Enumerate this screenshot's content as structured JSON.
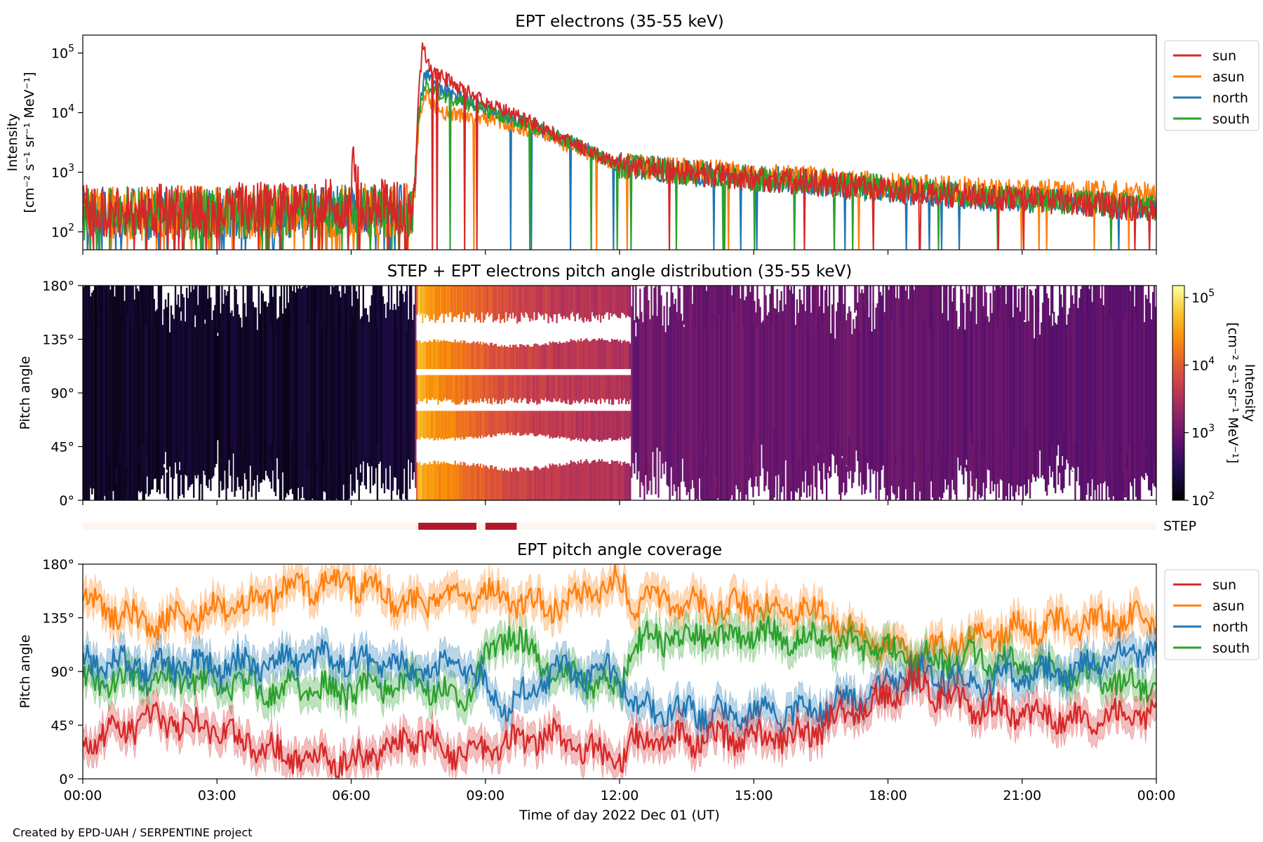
{
  "figure": {
    "credit": "Created by EPD-UAH / SERPENTINE project",
    "xlabel": "Time of day 2022 Dec 01 (UT)",
    "x_ticks": [
      "00:00",
      "03:00",
      "06:00",
      "09:00",
      "12:00",
      "15:00",
      "18:00",
      "21:00",
      "00:00"
    ],
    "x_range_hours": [
      0,
      24
    ]
  },
  "colors": {
    "sun": "#d62728",
    "asun": "#ff7f0e",
    "north": "#1f77b4",
    "south": "#2ca02c",
    "step_bar": "#b2182b",
    "step_track": "#fff5f0"
  },
  "chart_data": [
    {
      "type": "line",
      "title": "EPT electrons (35-55 keV)",
      "ylabel_line1": "Intensity",
      "ylabel_line2": "[cm⁻² s⁻¹ sr⁻¹ MeV⁻¹]",
      "yscale": "log",
      "ylim": [
        50,
        200000
      ],
      "y_ticks": [
        {
          "value": 100,
          "base": "10",
          "exp": "2"
        },
        {
          "value": 1000,
          "base": "10",
          "exp": "3"
        },
        {
          "value": 10000,
          "base": "10",
          "exp": "4"
        },
        {
          "value": 100000,
          "base": "10",
          "exp": "5"
        }
      ],
      "legend": {
        "position": "outside-right-top",
        "entries": [
          "sun",
          "asun",
          "north",
          "south"
        ]
      },
      "series": [
        {
          "name": "sun",
          "anchors": [
            [
              0,
              220
            ],
            [
              3,
              230
            ],
            [
              5,
              280
            ],
            [
              6.0,
              300
            ],
            [
              6.0,
              1800
            ],
            [
              6.2,
              300
            ],
            [
              7.4,
              260
            ],
            [
              7.5,
              20000
            ],
            [
              7.6,
              130000
            ],
            [
              7.8,
              50000
            ],
            [
              8.5,
              25000
            ],
            [
              9.0,
              15000
            ],
            [
              10,
              7000
            ],
            [
              11,
              3000
            ],
            [
              12,
              1300
            ],
            [
              14,
              900
            ],
            [
              16,
              700
            ],
            [
              18,
              500
            ],
            [
              20,
              400
            ],
            [
              22,
              320
            ],
            [
              24,
              230
            ]
          ]
        },
        {
          "name": "asun",
          "anchors": [
            [
              0,
              200
            ],
            [
              3,
              210
            ],
            [
              6,
              230
            ],
            [
              7.4,
              230
            ],
            [
              7.5,
              5000
            ],
            [
              7.65,
              20000
            ],
            [
              8,
              10000
            ],
            [
              9,
              8000
            ],
            [
              10,
              5000
            ],
            [
              11,
              2500
            ],
            [
              12,
              1300
            ],
            [
              14,
              1000
            ],
            [
              16,
              800
            ],
            [
              18,
              600
            ],
            [
              20,
              500
            ],
            [
              22,
              450
            ],
            [
              24,
              420
            ]
          ]
        },
        {
          "name": "north",
          "anchors": [
            [
              0,
              200
            ],
            [
              3,
              210
            ],
            [
              6,
              230
            ],
            [
              7.4,
              230
            ],
            [
              7.5,
              10000
            ],
            [
              7.65,
              45000
            ],
            [
              8,
              25000
            ],
            [
              9,
              12000
            ],
            [
              10,
              6000
            ],
            [
              11,
              3000
            ],
            [
              12,
              1300
            ],
            [
              14,
              900
            ],
            [
              16,
              700
            ],
            [
              18,
              500
            ],
            [
              20,
              380
            ],
            [
              22,
              320
            ],
            [
              24,
              260
            ]
          ]
        },
        {
          "name": "south",
          "anchors": [
            [
              0,
              200
            ],
            [
              3,
              210
            ],
            [
              6,
              230
            ],
            [
              7.4,
              230
            ],
            [
              7.5,
              8000
            ],
            [
              7.65,
              30000
            ],
            [
              8,
              20000
            ],
            [
              9,
              11000
            ],
            [
              10,
              6000
            ],
            [
              11,
              3000
            ],
            [
              12,
              1300
            ],
            [
              14,
              900
            ],
            [
              16,
              700
            ],
            [
              18,
              550
            ],
            [
              20,
              400
            ],
            [
              22,
              320
            ],
            [
              24,
              250
            ]
          ]
        }
      ]
    },
    {
      "type": "heatmap",
      "title": "STEP + EPT electrons pitch angle distribution (35-55 keV)",
      "ylabel": "Pitch angle",
      "ylim": [
        0,
        180
      ],
      "y_ticks": [
        "0°",
        "45°",
        "90°",
        "135°",
        "180°"
      ],
      "y_tick_values": [
        0,
        45,
        90,
        135,
        180
      ],
      "colorbar": {
        "label_line1": "Intensity",
        "label_line2": "[cm⁻² s⁻¹ sr⁻¹ MeV⁻¹]",
        "scale": "log",
        "range": [
          100,
          150000
        ],
        "colormap": "inferno",
        "ticks": [
          {
            "value": 100,
            "base": "10",
            "exp": "2"
          },
          {
            "value": 1000,
            "base": "10",
            "exp": "3"
          },
          {
            "value": 10000,
            "base": "10",
            "exp": "4"
          },
          {
            "value": 100000,
            "base": "10",
            "exp": "5"
          }
        ]
      },
      "intensity_profile": [
        [
          0,
          160
        ],
        [
          6,
          170
        ],
        [
          7.4,
          200
        ],
        [
          7.5,
          60000
        ],
        [
          7.7,
          30000
        ],
        [
          8.5,
          15000
        ],
        [
          9.3,
          8000
        ],
        [
          10,
          5000
        ],
        [
          12.2,
          3000
        ],
        [
          12.3,
          1000
        ],
        [
          24,
          700
        ]
      ]
    },
    {
      "type": "bar",
      "label": "STEP",
      "intervals": [
        [
          7.5,
          8.8
        ],
        [
          9.0,
          9.7
        ]
      ]
    },
    {
      "type": "line",
      "title": "EPT pitch angle coverage",
      "ylabel": "Pitch angle",
      "ylim": [
        0,
        180
      ],
      "y_ticks": [
        "0°",
        "45°",
        "90°",
        "135°",
        "180°"
      ],
      "y_tick_values": [
        0,
        45,
        90,
        135,
        180
      ],
      "legend": {
        "position": "outside-right-top",
        "entries": [
          "sun",
          "asun",
          "north",
          "south"
        ]
      },
      "series": [
        {
          "name": "sun",
          "anchors": [
            [
              0,
              30
            ],
            [
              1.5,
              50
            ],
            [
              3,
              40
            ],
            [
              4.5,
              20
            ],
            [
              6,
              15
            ],
            [
              7.5,
              35
            ],
            [
              8.5,
              20
            ],
            [
              9.5,
              30
            ],
            [
              10.5,
              35
            ],
            [
              12,
              15
            ],
            [
              12.3,
              30
            ],
            [
              14,
              35
            ],
            [
              16,
              35
            ],
            [
              17.5,
              60
            ],
            [
              18.5,
              80
            ],
            [
              20,
              60
            ],
            [
              22,
              50
            ],
            [
              24,
              55
            ]
          ]
        },
        {
          "name": "asun",
          "anchors": [
            [
              0,
              150
            ],
            [
              1.5,
              130
            ],
            [
              3,
              140
            ],
            [
              4.5,
              160
            ],
            [
              6,
              165
            ],
            [
              7.5,
              145
            ],
            [
              8.5,
              160
            ],
            [
              9.5,
              150
            ],
            [
              10.5,
              145
            ],
            [
              12,
              165
            ],
            [
              12.3,
              150
            ],
            [
              14,
              145
            ],
            [
              16,
              145
            ],
            [
              17.5,
              120
            ],
            [
              18.5,
              100
            ],
            [
              20,
              120
            ],
            [
              22,
              130
            ],
            [
              24,
              135
            ]
          ]
        },
        {
          "name": "north",
          "anchors": [
            [
              0,
              100
            ],
            [
              1.5,
              95
            ],
            [
              3,
              95
            ],
            [
              4.5,
              100
            ],
            [
              6,
              100
            ],
            [
              7.5,
              90
            ],
            [
              8.5,
              95
            ],
            [
              9.5,
              60
            ],
            [
              10.5,
              90
            ],
            [
              12,
              90
            ],
            [
              12.3,
              60
            ],
            [
              14,
              55
            ],
            [
              16,
              55
            ],
            [
              17.5,
              70
            ],
            [
              18.5,
              90
            ],
            [
              20,
              80
            ],
            [
              22,
              90
            ],
            [
              24,
              110
            ]
          ]
        },
        {
          "name": "south",
          "anchors": [
            [
              0,
              80
            ],
            [
              1.5,
              85
            ],
            [
              3,
              80
            ],
            [
              4.5,
              75
            ],
            [
              6,
              75
            ],
            [
              7.5,
              80
            ],
            [
              8.5,
              70
            ],
            [
              9.5,
              125
            ],
            [
              10.5,
              90
            ],
            [
              12,
              75
            ],
            [
              12.3,
              115
            ],
            [
              14,
              120
            ],
            [
              16,
              120
            ],
            [
              17.5,
              110
            ],
            [
              18.5,
              100
            ],
            [
              20,
              100
            ],
            [
              22,
              90
            ],
            [
              24,
              75
            ]
          ]
        }
      ]
    }
  ]
}
